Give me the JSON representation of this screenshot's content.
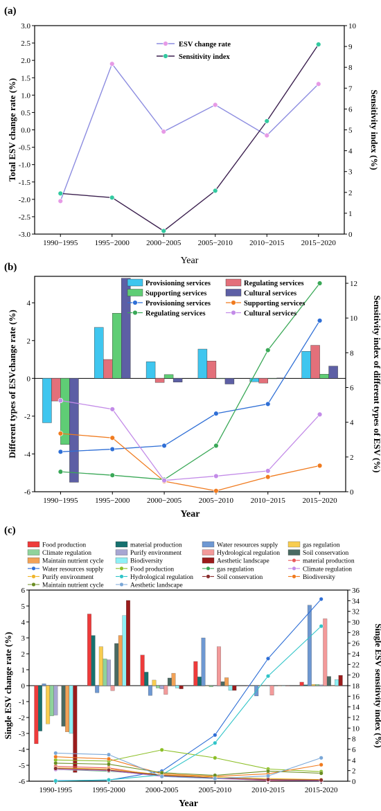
{
  "chart_data": [
    {
      "panel": "(a)",
      "type": "line",
      "categories": [
        "1990−1995",
        "1995−2000",
        "2000−2005",
        "2005−2010",
        "2010−2015",
        "2015−2020"
      ],
      "xlabel": "Year",
      "ylabel": "Total ESV change rate (%)",
      "y2label": "Sensitivity index (%)",
      "ylim": [
        -3.0,
        3.0
      ],
      "yticks": [
        "-3.0",
        "-2.5",
        "-2.0",
        "-1.5",
        "-1.0",
        "-0.5",
        "0.0",
        "0.5",
        "1.0",
        "1.5",
        "2.0",
        "2.5",
        "3.0"
      ],
      "y2lim": [
        0,
        10
      ],
      "y2ticks": [
        "0",
        "1",
        "2",
        "3",
        "4",
        "5",
        "6",
        "7",
        "8",
        "9",
        "10"
      ],
      "legend_position": "top-center",
      "series": [
        {
          "name": "ESV change rate",
          "axis": "left",
          "color": "#8c8ce0",
          "marker": "#e69ae6",
          "values": [
            -2.05,
            1.9,
            -0.05,
            0.72,
            -0.16,
            1.32
          ]
        },
        {
          "name": "Sensitivity index",
          "axis": "right",
          "color": "#3b1f4e",
          "marker": "#33c9a0",
          "values": [
            1.95,
            1.75,
            0.15,
            2.08,
            5.42,
            9.1
          ]
        }
      ]
    },
    {
      "panel": "(b)",
      "type": "bar",
      "categories": [
        "1990−1995",
        "1995−2000",
        "2000−2005",
        "2005−2010",
        "2010−2015",
        "2015−2020"
      ],
      "xlabel": "Year",
      "ylabel": "Different types of ESVchange rate (%)",
      "y2label": "Sensitivity index of different types of ESV (%)",
      "ylim": [
        -6,
        5.4
      ],
      "yticks": [
        "-6",
        "-4",
        "-2",
        "0",
        "2",
        "4"
      ],
      "y2lim": [
        0,
        12.4
      ],
      "y2ticks": [
        "0",
        "2",
        "4",
        "6",
        "8",
        "10",
        "12"
      ],
      "legend_position": "top-right",
      "bar_series": [
        {
          "name": "Provisioning services",
          "color": "#3fc6ef",
          "values": [
            -2.35,
            2.7,
            0.88,
            1.55,
            -0.18,
            1.43
          ]
        },
        {
          "name": "Regulating services",
          "color": "#e3707a",
          "values": [
            -1.2,
            1.0,
            -0.22,
            0.92,
            -0.25,
            1.75
          ]
        },
        {
          "name": "Supporting services",
          "color": "#5fcd75",
          "values": [
            -3.5,
            3.45,
            0.2,
            0.0,
            0.0,
            0.22
          ]
        },
        {
          "name": "Cultural services",
          "color": "#5d5fa5",
          "values": [
            -5.5,
            5.3,
            -0.2,
            -0.3,
            0.02,
            0.65
          ]
        }
      ],
      "line_series": [
        {
          "name": "Provisioning services",
          "color": "#2f6fd6",
          "values": [
            2.3,
            2.45,
            2.65,
            4.5,
            5.05,
            9.85
          ]
        },
        {
          "name": "Supporting services",
          "color": "#f07b1f",
          "values": [
            3.35,
            3.1,
            0.6,
            0.05,
            0.85,
            1.5
          ]
        },
        {
          "name": "Regulating services",
          "color": "#3aa857",
          "values": [
            1.15,
            0.95,
            0.7,
            2.65,
            8.15,
            12.0
          ]
        },
        {
          "name": "Cultural services",
          "color": "#c38be8",
          "values": [
            5.25,
            4.75,
            0.65,
            0.9,
            1.2,
            4.45
          ]
        }
      ]
    },
    {
      "panel": "(c)",
      "type": "bar",
      "categories": [
        "1990-1995",
        "1995-2000",
        "2000-2005",
        "2005-2010",
        "2010-2015",
        "2015-2020"
      ],
      "xlabel": "Year",
      "ylabel": "Single ESV  change rate (%)",
      "y2label": "Single ESV sensitivity index (%)",
      "ylim": [
        -6,
        6
      ],
      "yticks": [
        "-6",
        "-5",
        "-4",
        "-3",
        "-2",
        "-1",
        "0",
        "1",
        "2",
        "3",
        "4",
        "5",
        "6"
      ],
      "y2lim": [
        0,
        36
      ],
      "y2ticks": [
        "0",
        "2",
        "4",
        "6",
        "8",
        "10",
        "12",
        "14",
        "16",
        "18",
        "20",
        "22",
        "24",
        "26",
        "28",
        "30",
        "32",
        "34",
        "36"
      ],
      "legend_position": "top",
      "bar_series": [
        {
          "name": "Food production",
          "color": "#ee3b3b",
          "values": [
            -3.65,
            4.5,
            1.92,
            1.52,
            0.0,
            0.22
          ]
        },
        {
          "name": "material production",
          "color": "#16716f",
          "values": [
            -2.85,
            3.15,
            0.85,
            0.55,
            0.0,
            0.05
          ]
        },
        {
          "name": "Water resources supply",
          "color": "#6e98d2",
          "values": [
            0.12,
            -0.45,
            -0.62,
            3.0,
            -0.65,
            5.05
          ]
        },
        {
          "name": "gas regulation",
          "color": "#f8cd50",
          "values": [
            -2.4,
            2.45,
            0.35,
            0.0,
            0.0,
            0.08
          ]
        },
        {
          "name": "Climate regulation",
          "color": "#8fd39b",
          "values": [
            -1.9,
            1.68,
            -0.15,
            -0.08,
            0.0,
            0.08
          ]
        },
        {
          "name": "Purify environment",
          "color": "#a7a6d2",
          "values": [
            -1.85,
            1.62,
            -0.2,
            0.0,
            0.0,
            0.05
          ]
        },
        {
          "name": "Hydrological regulation",
          "color": "#f39a9a",
          "values": [
            0.0,
            -0.32,
            -0.55,
            2.45,
            -0.6,
            4.2
          ]
        },
        {
          "name": "Soil conservation",
          "color": "#4a6a62",
          "values": [
            -2.55,
            2.65,
            0.48,
            0.25,
            0.0,
            0.58
          ]
        },
        {
          "name": "Maintain nutrient cycle",
          "color": "#f2a257",
          "values": [
            -2.9,
            3.15,
            0.78,
            0.5,
            0.0,
            0.0
          ]
        },
        {
          "name": "Biodiversity",
          "color": "#8ef0f5",
          "values": [
            -3.0,
            4.4,
            -0.15,
            -0.3,
            0.0,
            0.38
          ]
        },
        {
          "name": "Aesthetic landscape",
          "color": "#9b1c1c",
          "values": [
            -5.45,
            5.35,
            -0.2,
            -0.3,
            0.0,
            0.65
          ]
        }
      ],
      "line_series": [
        {
          "name": "material production",
          "color": "#e85a5a",
          "values": [
            2.8,
            2.5,
            1.0,
            0.6,
            0.1,
            0.2
          ]
        },
        {
          "name": "Water resources supply",
          "color": "#2f6fd6",
          "values": [
            0.1,
            0.2,
            1.9,
            8.7,
            23.1,
            34.3
          ]
        },
        {
          "name": "Food production",
          "color": "#8cbf26",
          "values": [
            4.0,
            3.8,
            5.9,
            4.4,
            2.3,
            1.8
          ]
        },
        {
          "name": "gas regulation",
          "color": "#3aa857",
          "values": [
            2.2,
            1.9,
            1.1,
            0.6,
            0.3,
            0.2
          ]
        },
        {
          "name": "Climate regulation",
          "color": "#c38be8",
          "values": [
            2.2,
            2.0,
            0.9,
            0.5,
            0.2,
            0.1
          ]
        },
        {
          "name": "Purify environment",
          "color": "#f0b52a",
          "values": [
            2.5,
            2.3,
            1.2,
            0.8,
            0.5,
            0.3
          ]
        },
        {
          "name": "Hydrological regulation",
          "color": "#2fc4c8",
          "values": [
            0.05,
            0.25,
            1.2,
            7.2,
            19.8,
            29.2
          ]
        },
        {
          "name": "Soil conservation",
          "color": "#8a2e2e",
          "values": [
            2.4,
            2.1,
            1.1,
            0.6,
            0.3,
            0.2
          ]
        },
        {
          "name": "Biodiversity",
          "color": "#f07b1f",
          "values": [
            4.6,
            4.2,
            1.4,
            0.9,
            1.4,
            3.1
          ]
        },
        {
          "name": "Maintain nutrient cycle",
          "color": "#6b8e23",
          "values": [
            3.4,
            3.2,
            1.6,
            1.1,
            1.9,
            1.5
          ]
        },
        {
          "name": "Aesthetic landscape",
          "color": "#7aa7d8",
          "values": [
            5.3,
            5.0,
            0.9,
            0.5,
            1.0,
            4.4
          ]
        }
      ]
    }
  ]
}
